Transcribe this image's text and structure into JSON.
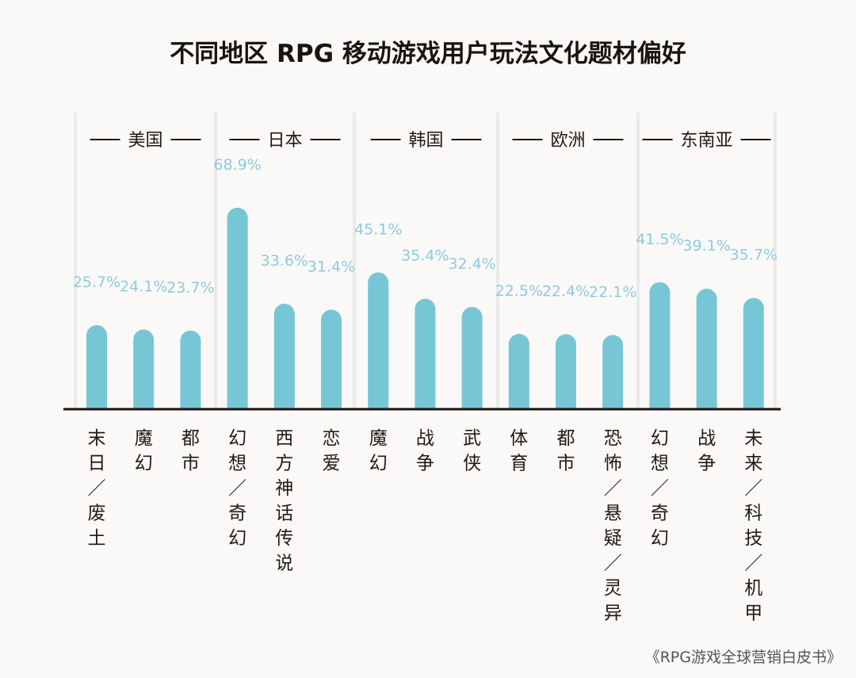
{
  "chart_data": {
    "type": "bar",
    "title": "不同地区 RPG 移动游戏用户玩法文化题材偏好",
    "source": "《RPG游戏全球营销白皮书》",
    "unit": "%",
    "bar_color": "#76c6d6",
    "label_color": "#8ccbe0",
    "groups": [
      {
        "region": "美国",
        "categories": [
          "末日/废土",
          "魔幻",
          "都市"
        ],
        "values": [
          25.7,
          24.1,
          23.7
        ],
        "labels": [
          "25.7%",
          "24.1%",
          "23.7%"
        ]
      },
      {
        "region": "日本",
        "categories": [
          "幻想/奇幻",
          "西方神话传说",
          "恋爱"
        ],
        "values": [
          68.9,
          33.6,
          31.4
        ],
        "labels": [
          "68.9%",
          "33.6%",
          "31.4%"
        ]
      },
      {
        "region": "韩国",
        "categories": [
          "魔幻",
          "战争",
          "武侠"
        ],
        "values": [
          45.1,
          35.4,
          32.4
        ],
        "labels": [
          "45.1%",
          "35.4%",
          "32.4%"
        ]
      },
      {
        "region": "欧洲",
        "categories": [
          "体育",
          "都市",
          "恐怖/悬疑/灵异"
        ],
        "values": [
          22.5,
          22.4,
          22.1
        ],
        "labels": [
          "22.5%",
          "22.4%",
          "22.1%"
        ]
      },
      {
        "region": "东南亚",
        "categories": [
          "幻想/奇幻",
          "战争",
          "未来/科技/机甲"
        ],
        "values": [
          41.5,
          39.1,
          35.7
        ],
        "labels": [
          "41.5%",
          "39.1%",
          "35.7%"
        ]
      }
    ]
  }
}
